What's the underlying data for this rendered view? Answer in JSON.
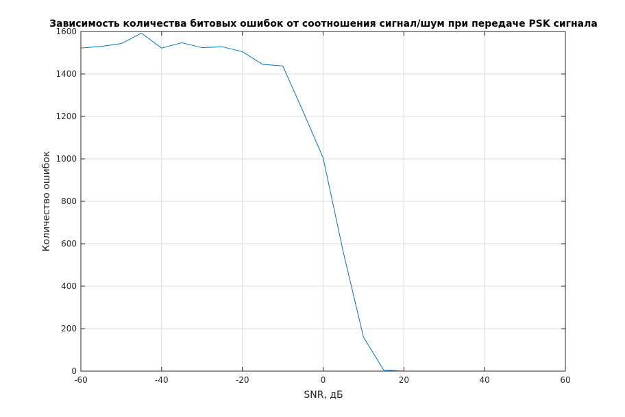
{
  "colors": {
    "background": "#ffffff",
    "axes": "#262626",
    "grid": "#dcdcdc",
    "line": "#0072bd"
  },
  "chart_data": {
    "type": "line",
    "title": "Зависимость количества битовых ошибок от соотношения сигнал/шум при передаче PSK сигнала",
    "xlabel": "SNR, дБ",
    "ylabel": "Количество ошибок",
    "xlim": [
      -60,
      60
    ],
    "ylim": [
      0,
      1600
    ],
    "xticks": [
      -60,
      -40,
      -20,
      0,
      20,
      40,
      60
    ],
    "yticks": [
      0,
      200,
      400,
      600,
      800,
      1000,
      1200,
      1400,
      1600
    ],
    "grid": true,
    "legend": "none",
    "series": [
      {
        "color": "#0072bd",
        "x": [
          -60,
          -55,
          -50,
          -45,
          -40,
          -35,
          -30,
          -25,
          -20,
          -15,
          -10,
          -5,
          0,
          5,
          10,
          15,
          18,
          20,
          25,
          30,
          35,
          40,
          45,
          50,
          55,
          60
        ],
        "y": [
          1522,
          1530,
          1543,
          1592,
          1522,
          1547,
          1524,
          1528,
          1505,
          1445,
          1438,
          1225,
          1005,
          560,
          160,
          5,
          2,
          0,
          0,
          0,
          0,
          0,
          0,
          0,
          0,
          0
        ]
      }
    ]
  }
}
